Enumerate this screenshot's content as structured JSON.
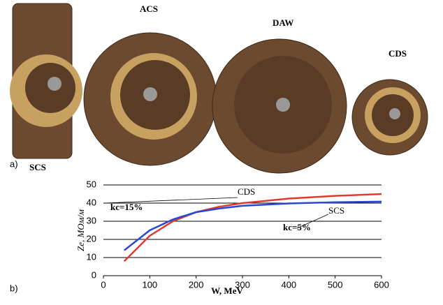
{
  "illustration": {
    "panel_label": "a)",
    "structures": [
      "SCS",
      "ACS",
      "DAW",
      "CDS"
    ]
  },
  "chart_data": {
    "type": "line",
    "panel_label": "b)",
    "x_label": "W, MeV",
    "y_label": "Ze, МОм/м",
    "x": [
      45,
      100,
      150,
      200,
      250,
      300,
      400,
      500,
      600
    ],
    "series": [
      {
        "name": "CDS",
        "color": "#e03a30",
        "values": [
          8,
          22,
          30,
          35,
          38,
          40,
          42.5,
          44,
          45
        ]
      },
      {
        "name": "SCS",
        "color": "#2a48d0",
        "values": [
          14,
          25,
          31,
          35,
          37,
          38.5,
          39.8,
          40.5,
          40.8
        ]
      }
    ],
    "annotations": [
      "CDS",
      "SCS",
      "kc=15%",
      "kc=5%"
    ],
    "xlim": [
      0,
      600
    ],
    "xticks": [
      0,
      100,
      200,
      300,
      400,
      500,
      600
    ],
    "ylim": [
      0,
      50
    ],
    "yticks": [
      0,
      10,
      20,
      30,
      40,
      50
    ],
    "grid": true
  }
}
